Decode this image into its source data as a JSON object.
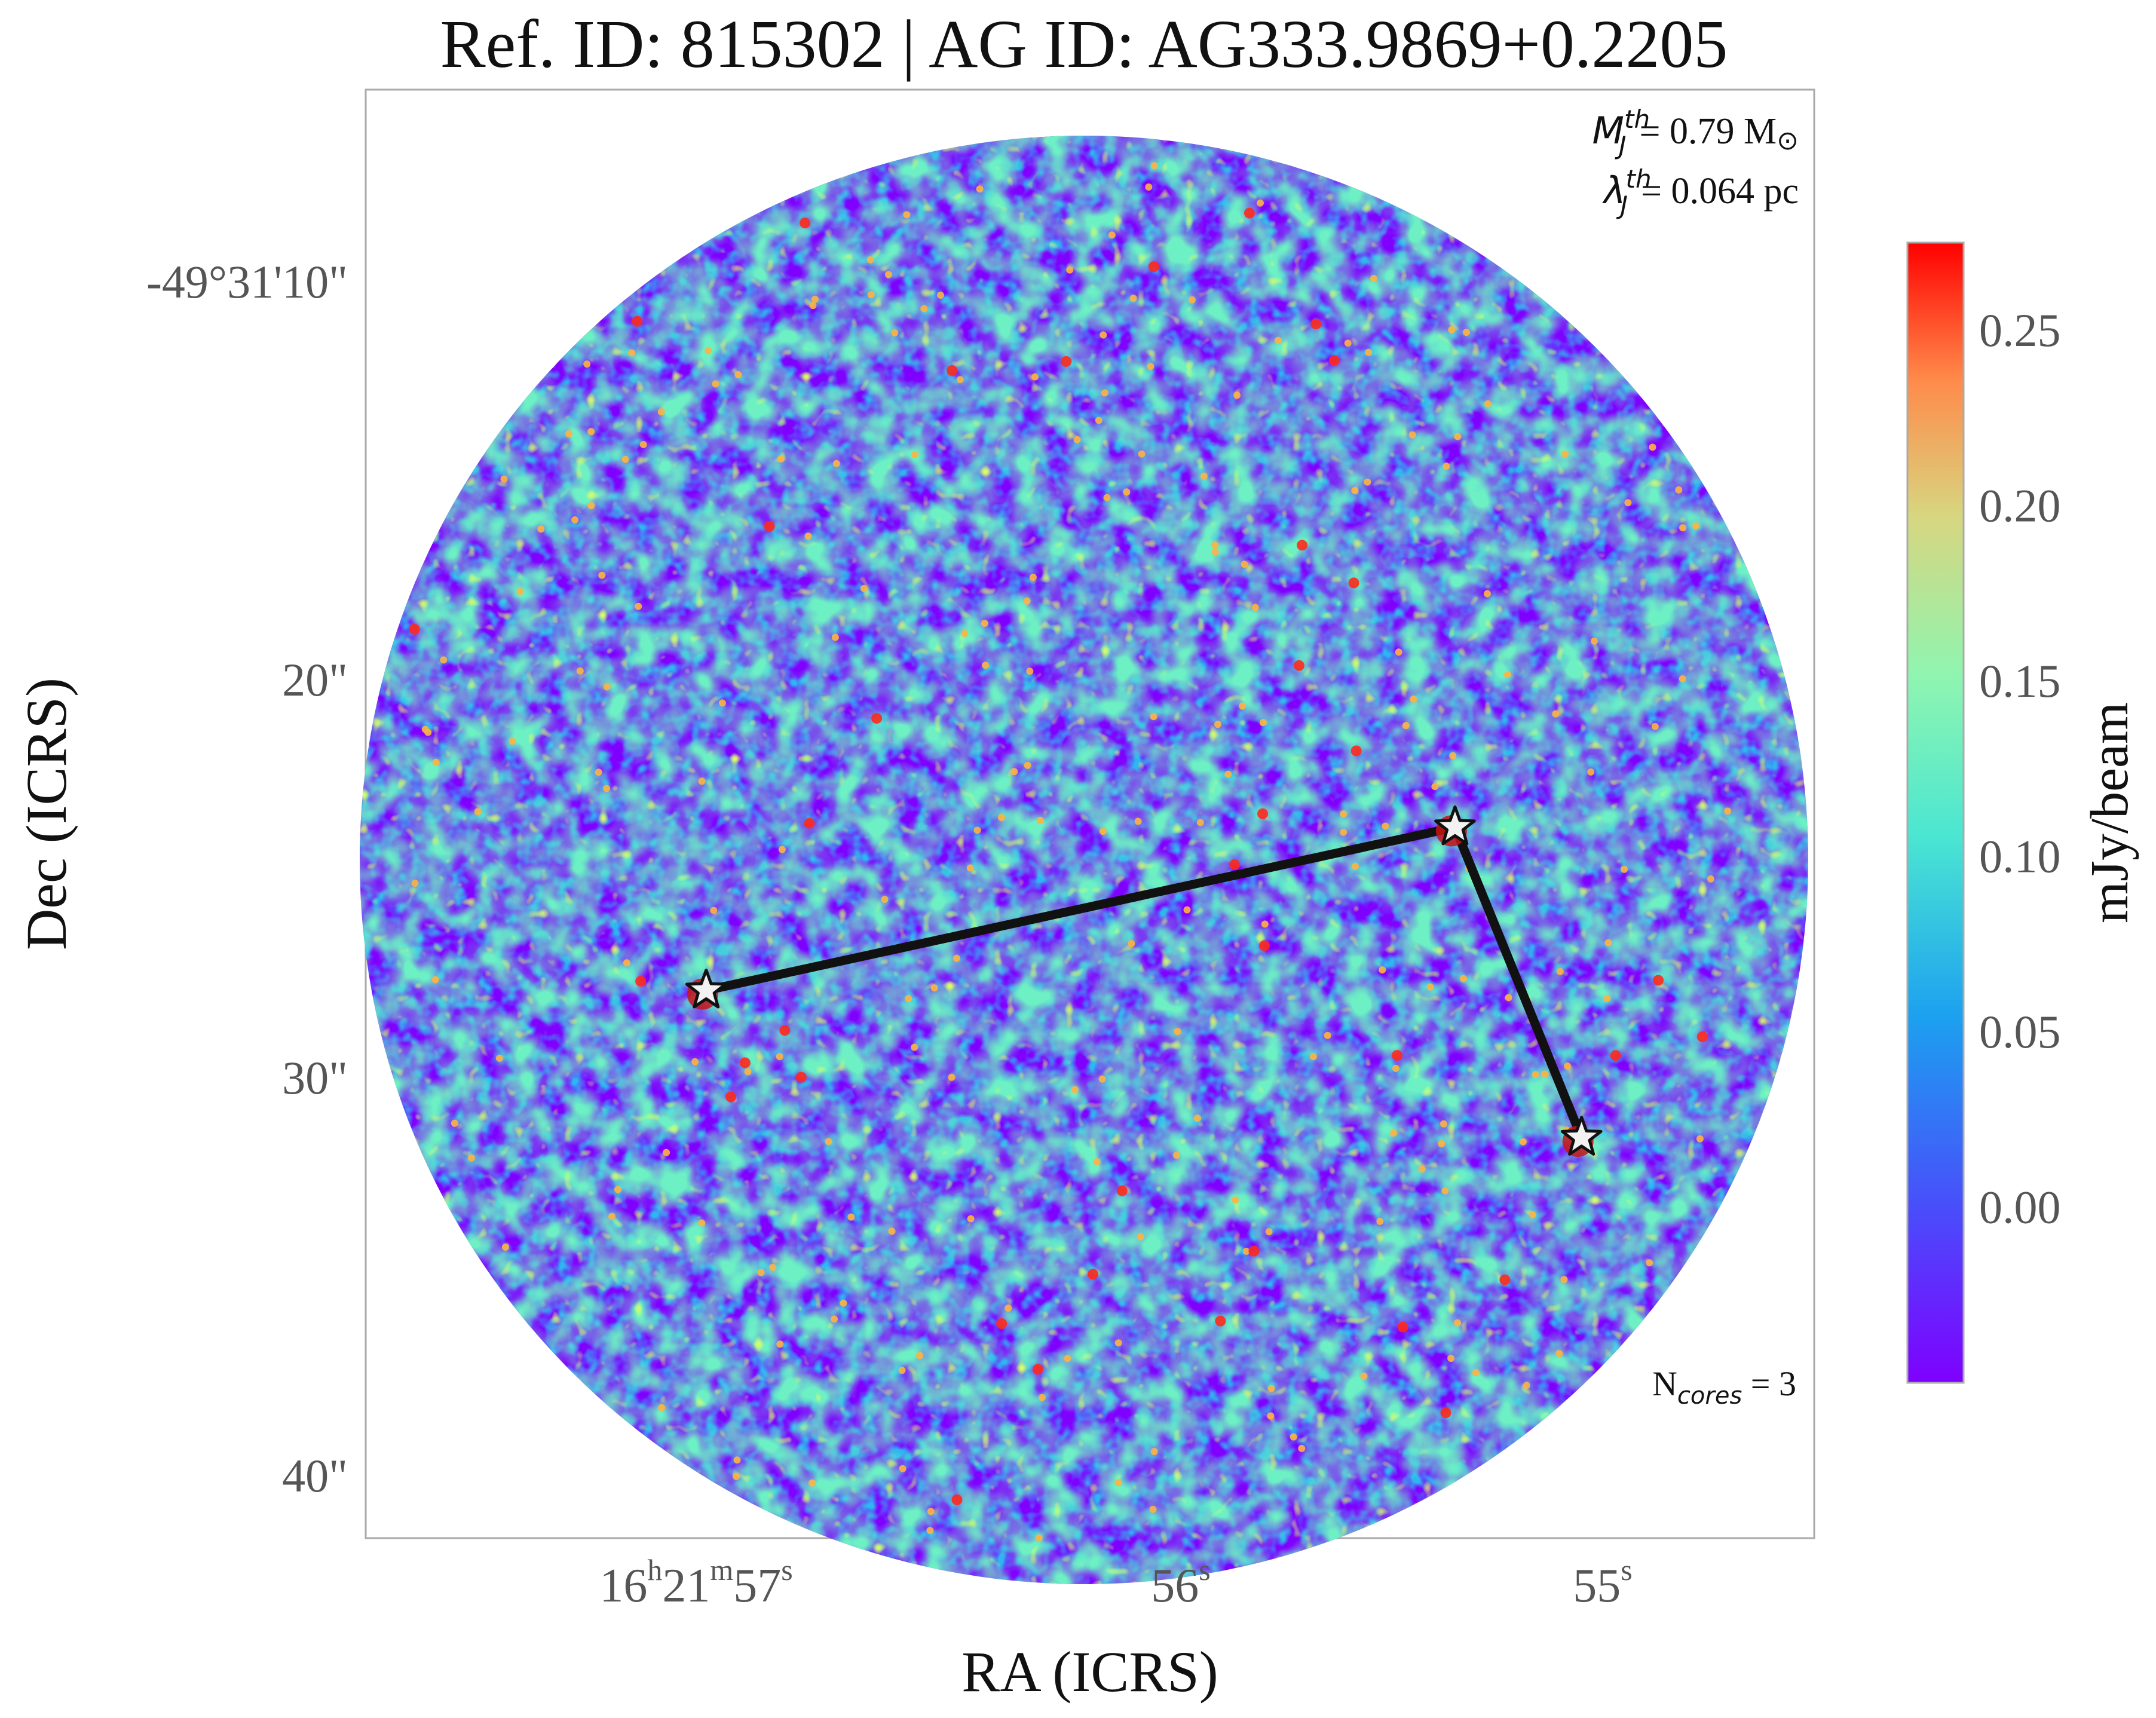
{
  "chart_data": {
    "type": "heatmap",
    "title": "Ref. ID: 815302 | AG ID: AG333.9869+0.2205",
    "xlabel": "RA (ICRS)",
    "ylabel": "Dec (ICRS)",
    "x_ticks": [
      {
        "hours": "16",
        "minutes": "21",
        "seconds": "57",
        "h_unit": "h",
        "m_unit": "m",
        "s_unit": "s",
        "ra_sec": 57
      },
      {
        "seconds": "56",
        "s_unit": "s",
        "ra_sec": 56
      },
      {
        "seconds": "55",
        "s_unit": "s",
        "ra_sec": 55
      }
    ],
    "y_ticks": [
      {
        "label": "-49°31'10\"",
        "dec_arcsec": 10
      },
      {
        "label": "20\"",
        "dec_arcsec": 20
      },
      {
        "label": "30\"",
        "dec_arcsec": 30
      },
      {
        "label": "40\"",
        "dec_arcsec": 40
      }
    ],
    "colorbar": {
      "label": "mJy/beam",
      "range": [
        -0.05,
        0.275
      ],
      "ticks": [
        "0.00",
        "0.05",
        "0.10",
        "0.15",
        "0.20",
        "0.25"
      ],
      "tick_values": [
        0.0,
        0.05,
        0.1,
        0.15,
        0.2,
        0.25
      ],
      "colormap": "rainbow"
    },
    "annotations": {
      "mj_symbol": "M",
      "mj_sub": "J",
      "mj_sup": "th",
      "mj_value": "= 0.79 M",
      "mj_sun": "⊙",
      "lambda_symbol": "λ",
      "lambda_sub": "J",
      "lambda_sup": "th",
      "lambda_value": "= 0.064 pc",
      "ncores_prefix": "N",
      "ncores_sub": "cores",
      "ncores_value": " = 3"
    },
    "cores": [
      {
        "ra_sec": 57.125,
        "dec_arcsec": 27.8
      },
      {
        "ra_sec": 55.35,
        "dec_arcsec": 23.7
      },
      {
        "ra_sec": 55.05,
        "dec_arcsec": 31.5
      }
    ],
    "connections": [
      [
        0,
        1
      ],
      [
        1,
        2
      ]
    ],
    "colors": {
      "background_low": "#7f00ff",
      "mid": "#80ffb4",
      "high": "#ff0000",
      "connector": "#111111",
      "star_fill": "#f2f2f2",
      "axes_frame": "#aaaaaa"
    }
  }
}
